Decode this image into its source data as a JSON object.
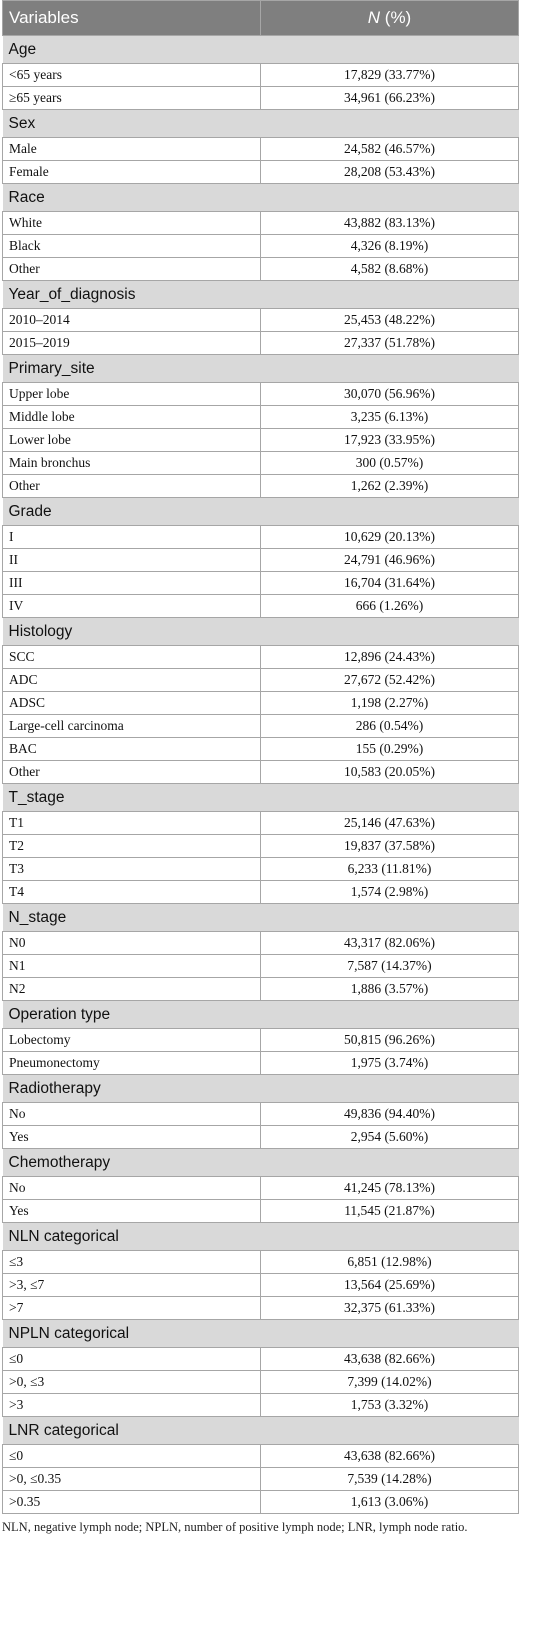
{
  "header": {
    "columns": [
      "Variables",
      "N",
      "(%)"
    ]
  },
  "sections": [
    {
      "name": "Age",
      "rows": [
        [
          "<65 years",
          "17,829 (33.77%)"
        ],
        [
          "≥65 years",
          "34,961 (66.23%)"
        ]
      ]
    },
    {
      "name": "Sex",
      "rows": [
        [
          "Male",
          "24,582 (46.57%)"
        ],
        [
          "Female",
          "28,208 (53.43%)"
        ]
      ]
    },
    {
      "name": "Race",
      "rows": [
        [
          "White",
          "43,882 (83.13%)"
        ],
        [
          "Black",
          "4,326 (8.19%)"
        ],
        [
          "Other",
          "4,582 (8.68%)"
        ]
      ]
    },
    {
      "name": "Year_of_diagnosis",
      "rows": [
        [
          "2010–2014",
          "25,453 (48.22%)"
        ],
        [
          "2015–2019",
          "27,337 (51.78%)"
        ]
      ]
    },
    {
      "name": "Primary_site",
      "rows": [
        [
          "Upper lobe",
          "30,070 (56.96%)"
        ],
        [
          "Middle lobe",
          "3,235 (6.13%)"
        ],
        [
          "Lower lobe",
          "17,923 (33.95%)"
        ],
        [
          "Main bronchus",
          "300 (0.57%)"
        ],
        [
          "Other",
          "1,262 (2.39%)"
        ]
      ]
    },
    {
      "name": "Grade",
      "rows": [
        [
          "I",
          "10,629 (20.13%)"
        ],
        [
          "II",
          "24,791 (46.96%)"
        ],
        [
          "III",
          "16,704 (31.64%)"
        ],
        [
          "IV",
          "666 (1.26%)"
        ]
      ]
    },
    {
      "name": "Histology",
      "rows": [
        [
          "SCC",
          "12,896 (24.43%)"
        ],
        [
          "ADC",
          "27,672 (52.42%)"
        ],
        [
          "ADSC",
          "1,198 (2.27%)"
        ],
        [
          "Large-cell carcinoma",
          "286 (0.54%)"
        ],
        [
          "BAC",
          "155 (0.29%)"
        ],
        [
          "Other",
          "10,583 (20.05%)"
        ]
      ]
    },
    {
      "name": "T_stage",
      "rows": [
        [
          "T1",
          "25,146 (47.63%)"
        ],
        [
          "T2",
          "19,837 (37.58%)"
        ],
        [
          "T3",
          "6,233 (11.81%)"
        ],
        [
          "T4",
          "1,574 (2.98%)"
        ]
      ]
    },
    {
      "name": "N_stage",
      "rows": [
        [
          "N0",
          "43,317 (82.06%)"
        ],
        [
          "N1",
          "7,587 (14.37%)"
        ],
        [
          "N2",
          "1,886 (3.57%)"
        ]
      ]
    },
    {
      "name": "Operation type",
      "rows": [
        [
          "Lobectomy",
          "50,815 (96.26%)"
        ],
        [
          "Pneumonectomy",
          "1,975 (3.74%)"
        ]
      ]
    },
    {
      "name": "Radiotherapy",
      "rows": [
        [
          "No",
          "49,836 (94.40%)"
        ],
        [
          "Yes",
          "2,954 (5.60%)"
        ]
      ]
    },
    {
      "name": "Chemotherapy",
      "rows": [
        [
          "No",
          "41,245 (78.13%)"
        ],
        [
          "Yes",
          "11,545 (21.87%)"
        ]
      ]
    },
    {
      "name": "NLN categorical",
      "rows": [
        [
          "≤3",
          "6,851 (12.98%)"
        ],
        [
          ">3, ≤7",
          "13,564 (25.69%)"
        ],
        [
          ">7",
          "32,375 (61.33%)"
        ]
      ]
    },
    {
      "name": "NPLN categorical",
      "rows": [
        [
          "≤0",
          "43,638 (82.66%)"
        ],
        [
          ">0, ≤3",
          "7,399 (14.02%)"
        ],
        [
          ">3",
          "1,753 (3.32%)"
        ]
      ]
    },
    {
      "name": "LNR categorical",
      "rows": [
        [
          "≤0",
          "43,638 (82.66%)"
        ],
        [
          ">0, ≤0.35",
          "7,539 (14.28%)"
        ],
        [
          ">0.35",
          "1,613 (3.06%)"
        ]
      ]
    }
  ],
  "footnote": "NLN, negative lymph node; NPLN, number of positive lymph node; LNR, lymph node ratio."
}
